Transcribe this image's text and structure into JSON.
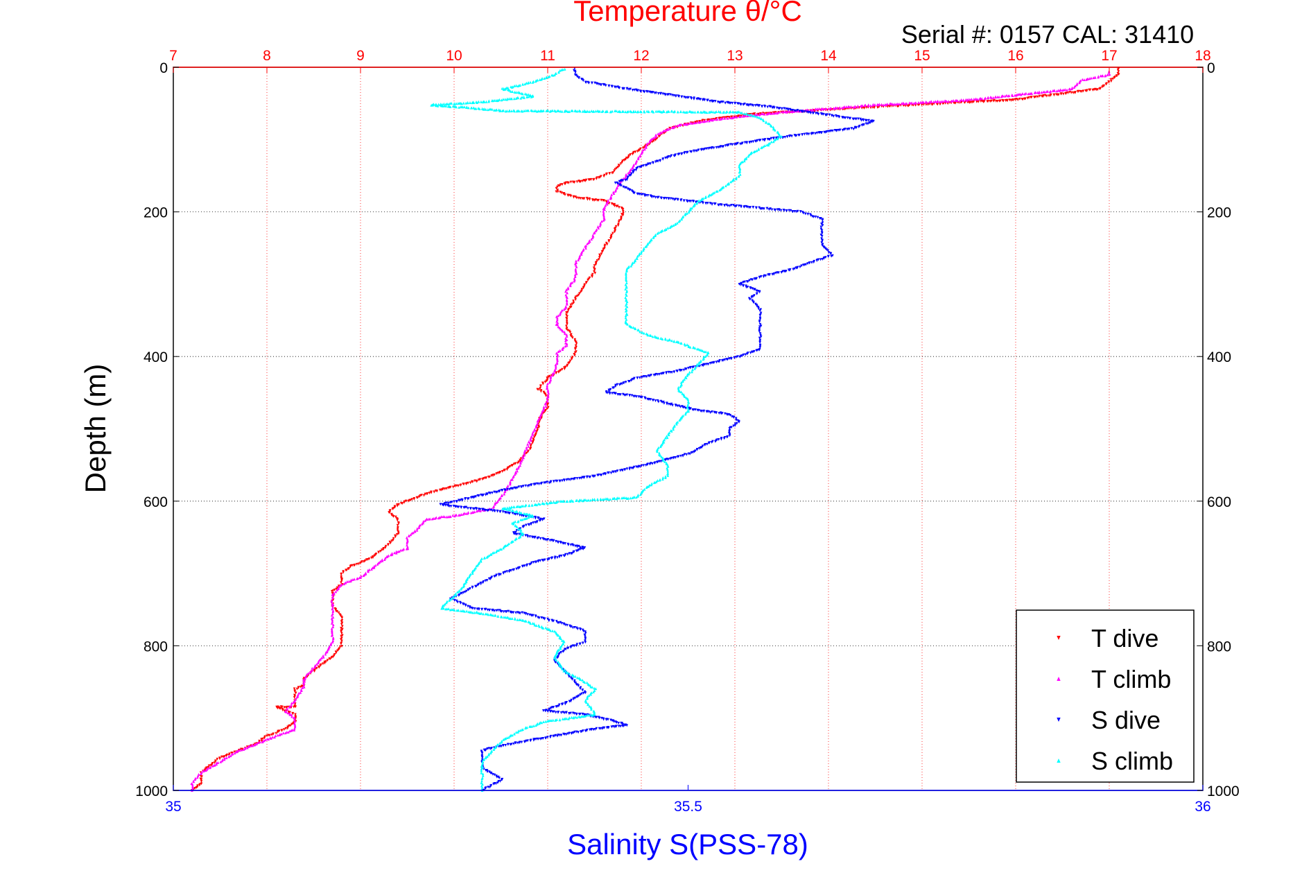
{
  "chart_data": {
    "type": "scatter",
    "title": "Temperature θ/°C",
    "subtitle": "Serial #: 0157  CAL: 31410",
    "xlabel_top": "Temperature θ/°C",
    "xlabel_bottom": "Salinity S(PSS-78)",
    "ylabel": "Depth (m)",
    "temperature_axis": {
      "lim": [
        7,
        18
      ],
      "ticks": [
        "7",
        "8",
        "9",
        "10",
        "11",
        "12",
        "13",
        "14",
        "15",
        "16",
        "17",
        "18"
      ],
      "color": "#ff0000"
    },
    "salinity_axis": {
      "lim": [
        35,
        36
      ],
      "ticks": [
        "35",
        "35.5",
        "36"
      ],
      "color": "#0000ff"
    },
    "depth_axis": {
      "lim": [
        0,
        1000
      ],
      "reversed": true,
      "ticks": [
        "0",
        "200",
        "400",
        "600",
        "800",
        "1000"
      ]
    },
    "grid": true,
    "legend_position": "bottom-right",
    "series": [
      {
        "name": "T dive",
        "axis": "temperature",
        "color": "#ff0000",
        "marker": "triangle-down",
        "points": [
          [
            17.1,
            2
          ],
          [
            17.1,
            10
          ],
          [
            17.0,
            20
          ],
          [
            16.9,
            30
          ],
          [
            16.0,
            45
          ],
          [
            14.5,
            55
          ],
          [
            13.2,
            65
          ],
          [
            12.6,
            75
          ],
          [
            12.3,
            85
          ],
          [
            12.2,
            95
          ],
          [
            12.1,
            105
          ],
          [
            11.9,
            120
          ],
          [
            11.8,
            130
          ],
          [
            11.7,
            145
          ],
          [
            11.5,
            155
          ],
          [
            11.2,
            160
          ],
          [
            11.1,
            165
          ],
          [
            11.1,
            172
          ],
          [
            11.3,
            180
          ],
          [
            11.6,
            185
          ],
          [
            11.8,
            195
          ],
          [
            11.8,
            205
          ],
          [
            11.7,
            230
          ],
          [
            11.6,
            250
          ],
          [
            11.5,
            275
          ],
          [
            11.5,
            285
          ],
          [
            11.4,
            300
          ],
          [
            11.3,
            320
          ],
          [
            11.2,
            340
          ],
          [
            11.2,
            360
          ],
          [
            11.3,
            380
          ],
          [
            11.3,
            395
          ],
          [
            11.2,
            415
          ],
          [
            11.0,
            430
          ],
          [
            10.9,
            445
          ],
          [
            11.0,
            455
          ],
          [
            11.0,
            470
          ],
          [
            10.9,
            490
          ],
          [
            10.9,
            500
          ],
          [
            10.8,
            530
          ],
          [
            10.7,
            545
          ],
          [
            10.5,
            560
          ],
          [
            10.3,
            570
          ],
          [
            10.0,
            580
          ],
          [
            9.7,
            590
          ],
          [
            9.4,
            605
          ],
          [
            9.3,
            615
          ],
          [
            9.4,
            625
          ],
          [
            9.4,
            645
          ],
          [
            9.3,
            660
          ],
          [
            9.1,
            680
          ],
          [
            8.9,
            690
          ],
          [
            8.8,
            700
          ],
          [
            8.8,
            715
          ],
          [
            8.7,
            725
          ],
          [
            8.7,
            745
          ],
          [
            8.8,
            760
          ],
          [
            8.8,
            775
          ],
          [
            8.8,
            800
          ],
          [
            8.7,
            815
          ],
          [
            8.6,
            825
          ],
          [
            8.5,
            835
          ],
          [
            8.4,
            845
          ],
          [
            8.4,
            855
          ],
          [
            8.3,
            860
          ],
          [
            8.3,
            870
          ],
          [
            8.3,
            885
          ],
          [
            8.1,
            885
          ],
          [
            8.3,
            895
          ],
          [
            8.3,
            905
          ],
          [
            8.2,
            915
          ],
          [
            8.0,
            925
          ],
          [
            7.9,
            935
          ],
          [
            7.7,
            945
          ],
          [
            7.5,
            955
          ],
          [
            7.4,
            965
          ],
          [
            7.3,
            975
          ],
          [
            7.3,
            990
          ],
          [
            7.2,
            1000
          ]
        ]
      },
      {
        "name": "T climb",
        "axis": "temperature",
        "color": "#ff00ff",
        "marker": "triangle-up",
        "points": [
          [
            17.0,
            5
          ],
          [
            17.0,
            10
          ],
          [
            16.7,
            18
          ],
          [
            16.6,
            30
          ],
          [
            15.5,
            45
          ],
          [
            14.5,
            52
          ],
          [
            13.5,
            62
          ],
          [
            12.8,
            72
          ],
          [
            12.4,
            80
          ],
          [
            12.2,
            90
          ],
          [
            12.1,
            100
          ],
          [
            12.0,
            120
          ],
          [
            11.9,
            140
          ],
          [
            11.8,
            155
          ],
          [
            11.7,
            175
          ],
          [
            11.6,
            195
          ],
          [
            11.6,
            210
          ],
          [
            11.5,
            230
          ],
          [
            11.4,
            250
          ],
          [
            11.3,
            270
          ],
          [
            11.3,
            290
          ],
          [
            11.2,
            310
          ],
          [
            11.2,
            330
          ],
          [
            11.1,
            345
          ],
          [
            11.1,
            355
          ],
          [
            11.2,
            370
          ],
          [
            11.2,
            385
          ],
          [
            11.1,
            395
          ],
          [
            11.1,
            410
          ],
          [
            11.0,
            440
          ],
          [
            11.0,
            460
          ],
          [
            10.9,
            490
          ],
          [
            10.8,
            520
          ],
          [
            10.7,
            550
          ],
          [
            10.6,
            575
          ],
          [
            10.5,
            595
          ],
          [
            10.4,
            610
          ],
          [
            10.0,
            620
          ],
          [
            9.7,
            625
          ],
          [
            9.6,
            640
          ],
          [
            9.5,
            650
          ],
          [
            9.5,
            665
          ],
          [
            9.3,
            675
          ],
          [
            9.1,
            695
          ],
          [
            9.0,
            705
          ],
          [
            8.8,
            715
          ],
          [
            8.7,
            730
          ],
          [
            8.7,
            745
          ],
          [
            8.7,
            760
          ],
          [
            8.7,
            780
          ],
          [
            8.7,
            795
          ],
          [
            8.6,
            815
          ],
          [
            8.5,
            830
          ],
          [
            8.4,
            845
          ],
          [
            8.4,
            855
          ],
          [
            8.3,
            875
          ],
          [
            8.2,
            890
          ],
          [
            8.3,
            900
          ],
          [
            8.3,
            915
          ],
          [
            8.1,
            925
          ],
          [
            7.9,
            935
          ],
          [
            7.7,
            945
          ],
          [
            7.5,
            960
          ],
          [
            7.3,
            975
          ],
          [
            7.2,
            990
          ],
          [
            7.2,
            1000
          ]
        ]
      },
      {
        "name": "S dive",
        "axis": "salinity",
        "color": "#0000ff",
        "marker": "triangle-down",
        "points": [
          [
            35.39,
            2
          ],
          [
            35.39,
            10
          ],
          [
            35.4,
            20
          ],
          [
            35.44,
            30
          ],
          [
            35.48,
            38
          ],
          [
            35.53,
            48
          ],
          [
            35.58,
            55
          ],
          [
            35.63,
            65
          ],
          [
            35.68,
            75
          ],
          [
            35.66,
            85
          ],
          [
            35.6,
            95
          ],
          [
            35.53,
            110
          ],
          [
            35.49,
            120
          ],
          [
            35.45,
            140
          ],
          [
            35.44,
            155
          ],
          [
            35.43,
            160
          ],
          [
            35.45,
            175
          ],
          [
            35.47,
            180
          ],
          [
            35.5,
            185
          ],
          [
            35.53,
            190
          ],
          [
            35.57,
            195
          ],
          [
            35.61,
            200
          ],
          [
            35.63,
            210
          ],
          [
            35.63,
            230
          ],
          [
            35.63,
            245
          ],
          [
            35.64,
            260
          ],
          [
            35.62,
            270
          ],
          [
            35.6,
            280
          ],
          [
            35.57,
            290
          ],
          [
            35.55,
            300
          ],
          [
            35.57,
            310
          ],
          [
            35.56,
            320
          ],
          [
            35.57,
            335
          ],
          [
            35.57,
            355
          ],
          [
            35.57,
            375
          ],
          [
            35.57,
            390
          ],
          [
            35.55,
            400
          ],
          [
            35.52,
            410
          ],
          [
            35.49,
            420
          ],
          [
            35.45,
            430
          ],
          [
            35.43,
            440
          ],
          [
            35.42,
            450
          ],
          [
            35.45,
            455
          ],
          [
            35.48,
            465
          ],
          [
            35.51,
            475
          ],
          [
            35.54,
            480
          ],
          [
            35.55,
            490
          ],
          [
            35.54,
            500
          ],
          [
            35.54,
            510
          ],
          [
            35.52,
            520
          ],
          [
            35.5,
            535
          ],
          [
            35.46,
            550
          ],
          [
            35.41,
            565
          ],
          [
            35.36,
            575
          ],
          [
            35.32,
            585
          ],
          [
            35.29,
            595
          ],
          [
            35.26,
            605
          ],
          [
            35.32,
            615
          ],
          [
            35.36,
            625
          ],
          [
            35.34,
            635
          ],
          [
            35.33,
            645
          ],
          [
            35.37,
            655
          ],
          [
            35.4,
            665
          ],
          [
            35.38,
            675
          ],
          [
            35.35,
            685
          ],
          [
            35.33,
            695
          ],
          [
            35.31,
            705
          ],
          [
            35.29,
            720
          ],
          [
            35.27,
            735
          ],
          [
            35.29,
            748
          ],
          [
            35.34,
            755
          ],
          [
            35.38,
            770
          ],
          [
            35.4,
            780
          ],
          [
            35.4,
            795
          ],
          [
            35.38,
            805
          ],
          [
            35.37,
            820
          ],
          [
            35.38,
            835
          ],
          [
            35.39,
            850
          ],
          [
            35.4,
            865
          ],
          [
            35.38,
            880
          ],
          [
            35.36,
            890
          ],
          [
            35.4,
            895
          ],
          [
            35.43,
            905
          ],
          [
            35.44,
            910
          ],
          [
            35.41,
            915
          ],
          [
            35.37,
            925
          ],
          [
            35.33,
            935
          ],
          [
            35.3,
            945
          ],
          [
            35.3,
            955
          ],
          [
            35.3,
            970
          ],
          [
            35.32,
            985
          ],
          [
            35.3,
            1000
          ]
        ]
      },
      {
        "name": "S climb",
        "axis": "salinity",
        "color": "#00ffff",
        "marker": "triangle-up",
        "points": [
          [
            35.38,
            2
          ],
          [
            35.37,
            10
          ],
          [
            35.35,
            20
          ],
          [
            35.32,
            30
          ],
          [
            35.35,
            40
          ],
          [
            35.3,
            48
          ],
          [
            35.25,
            52
          ],
          [
            35.28,
            55
          ],
          [
            35.32,
            60
          ],
          [
            35.55,
            62
          ],
          [
            35.57,
            70
          ],
          [
            35.58,
            80
          ],
          [
            35.59,
            95
          ],
          [
            35.58,
            105
          ],
          [
            35.56,
            120
          ],
          [
            35.55,
            135
          ],
          [
            35.55,
            150
          ],
          [
            35.53,
            170
          ],
          [
            35.51,
            185
          ],
          [
            35.5,
            200
          ],
          [
            35.49,
            215
          ],
          [
            35.47,
            230
          ],
          [
            35.46,
            245
          ],
          [
            35.45,
            265
          ],
          [
            35.44,
            280
          ],
          [
            35.44,
            300
          ],
          [
            35.44,
            320
          ],
          [
            35.44,
            340
          ],
          [
            35.44,
            355
          ],
          [
            35.46,
            370
          ],
          [
            35.49,
            380
          ],
          [
            35.52,
            395
          ],
          [
            35.51,
            410
          ],
          [
            35.5,
            425
          ],
          [
            35.49,
            445
          ],
          [
            35.5,
            460
          ],
          [
            35.5,
            475
          ],
          [
            35.49,
            490
          ],
          [
            35.48,
            510
          ],
          [
            35.47,
            530
          ],
          [
            35.48,
            550
          ],
          [
            35.48,
            565
          ],
          [
            35.46,
            580
          ],
          [
            35.45,
            595
          ],
          [
            35.38,
            600
          ],
          [
            35.32,
            610
          ],
          [
            35.35,
            620
          ],
          [
            35.33,
            630
          ],
          [
            35.34,
            645
          ],
          [
            35.32,
            665
          ],
          [
            35.3,
            680
          ],
          [
            35.29,
            700
          ],
          [
            35.28,
            720
          ],
          [
            35.27,
            735
          ],
          [
            35.26,
            748
          ],
          [
            35.3,
            755
          ],
          [
            35.34,
            765
          ],
          [
            35.37,
            780
          ],
          [
            35.38,
            795
          ],
          [
            35.37,
            815
          ],
          [
            35.38,
            835
          ],
          [
            35.4,
            850
          ],
          [
            35.41,
            860
          ],
          [
            35.4,
            875
          ],
          [
            35.41,
            895
          ],
          [
            35.36,
            905
          ],
          [
            35.34,
            915
          ],
          [
            35.32,
            930
          ],
          [
            35.31,
            945
          ],
          [
            35.3,
            960
          ],
          [
            35.3,
            980
          ],
          [
            35.3,
            1000
          ]
        ]
      }
    ]
  }
}
